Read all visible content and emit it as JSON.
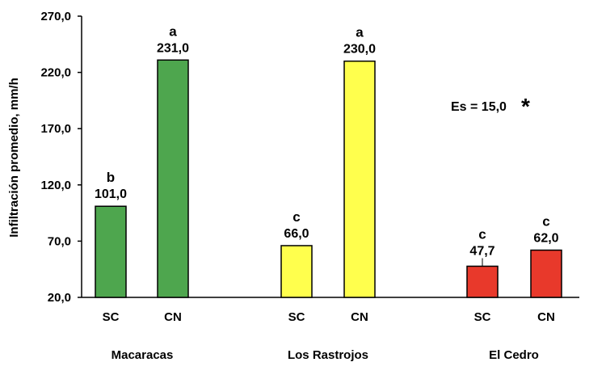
{
  "chart_data": {
    "type": "bar",
    "ylabel": "Infiltración promedio, mm/h",
    "ylim": [
      20,
      270
    ],
    "yticks": [
      "20,0",
      "70,0",
      "120,0",
      "170,0",
      "220,0",
      "270,0"
    ],
    "ytick_values": [
      20,
      70,
      120,
      170,
      220,
      270
    ],
    "groups": [
      "Macaracas",
      "Los Rastrojos",
      "El Cedro"
    ],
    "bars": [
      {
        "group": "Macaracas",
        "category": "SC",
        "value": 101.0,
        "label": "101,0",
        "letter": "b",
        "color": "#4ea64e"
      },
      {
        "group": "Macaracas",
        "category": "CN",
        "value": 231.0,
        "label": "231,0",
        "letter": "a",
        "color": "#4ea64e"
      },
      {
        "group": "Los Rastrojos",
        "category": "SC",
        "value": 66.0,
        "label": "66,0",
        "letter": "c",
        "color": "#ffff4d"
      },
      {
        "group": "Los Rastrojos",
        "category": "CN",
        "value": 230.0,
        "label": "230,0",
        "letter": "a",
        "color": "#ffff4d"
      },
      {
        "group": "El Cedro",
        "category": "SC",
        "value": 47.7,
        "label": "47,7",
        "letter": "c",
        "color": "#e8392b"
      },
      {
        "group": "El Cedro",
        "category": "CN",
        "value": 62.0,
        "label": "62,0",
        "letter": "c",
        "color": "#e8392b"
      }
    ],
    "annotation": "Es = 15,0",
    "annotation_mark": "*",
    "grid": false,
    "legend": "none"
  }
}
